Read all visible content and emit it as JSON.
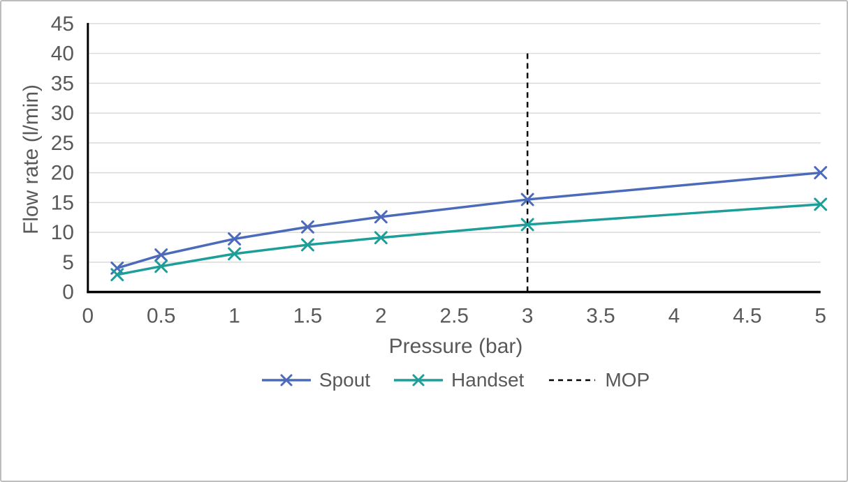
{
  "figure": {
    "background_color": "#ffffff",
    "border_color": "#bdbdbd"
  },
  "chart_data": {
    "type": "line",
    "title": "",
    "xlabel": "Pressure (bar)",
    "ylabel": "Flow rate (l/min)",
    "xlim": [
      0,
      5
    ],
    "ylim": [
      0,
      45
    ],
    "x_ticks": [
      0,
      0.5,
      1,
      1.5,
      2,
      2.5,
      3,
      3.5,
      4,
      4.5,
      5
    ],
    "y_ticks": [
      0,
      5,
      10,
      15,
      20,
      25,
      30,
      35,
      40,
      45
    ],
    "grid": "horizontal",
    "gridline_color": "#d9d9d9",
    "axis_color": "#000000",
    "tick_label_color": "#595959",
    "legend_position": "bottom",
    "x": [
      0.2,
      0.5,
      1,
      1.5,
      2,
      3,
      5
    ],
    "series": [
      {
        "name": "Spout",
        "color": "#4b6bba",
        "marker": "x",
        "values": [
          4.0,
          6.2,
          8.9,
          10.9,
          12.6,
          15.5,
          20.0
        ]
      },
      {
        "name": "Handset",
        "color": "#1d9e99",
        "marker": "x",
        "values": [
          2.9,
          4.3,
          6.4,
          7.9,
          9.1,
          11.3,
          14.7
        ]
      }
    ],
    "annotations": [
      {
        "name": "MOP",
        "type": "vline",
        "x": 3,
        "y_from": 0,
        "y_to": 40,
        "style": "dashed",
        "color": "#000000"
      }
    ]
  }
}
